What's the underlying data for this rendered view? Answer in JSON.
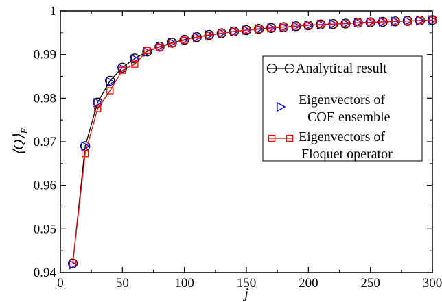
{
  "chart_data": {
    "type": "line",
    "xlabel": "j",
    "ylabel": "⟨Q⟩",
    "ylabel_sub": "E",
    "xlim": [
      0,
      300
    ],
    "ylim": [
      0.94,
      1.0
    ],
    "x_ticks": [
      0,
      50,
      100,
      150,
      200,
      250,
      300
    ],
    "y_ticks": [
      0.94,
      0.95,
      0.96,
      0.97,
      0.98,
      0.99,
      1.0
    ],
    "y_tick_labels": [
      "0.94",
      "0.95",
      "0.96",
      "0.97",
      "0.98",
      "0.99",
      "1"
    ],
    "x_tick_labels": [
      "0",
      "50",
      "100",
      "150",
      "200",
      "250",
      "300"
    ],
    "grid": false,
    "legend_position": "right-middle",
    "x": [
      10,
      20,
      30,
      40,
      50,
      60,
      70,
      80,
      90,
      100,
      110,
      120,
      130,
      140,
      150,
      160,
      170,
      180,
      190,
      200,
      210,
      220,
      230,
      240,
      250,
      260,
      270,
      280,
      290,
      300
    ],
    "series": [
      {
        "name": "Analytical result",
        "marker": "circle",
        "line": true,
        "color": "#000000",
        "values": [
          0.9421,
          0.969,
          0.979,
          0.984,
          0.987,
          0.9891,
          0.9907,
          0.9918,
          0.9927,
          0.9934,
          0.994,
          0.9945,
          0.9949,
          0.9953,
          0.9956,
          0.9959,
          0.9961,
          0.9963,
          0.9965,
          0.9967,
          0.9969,
          0.997,
          0.9971,
          0.9973,
          0.9974,
          0.9975,
          0.9976,
          0.9977,
          0.9978,
          0.9979
        ]
      },
      {
        "name": "Eigenvectors of COE ensemble",
        "legend_lines": [
          "Eigenvectors of",
          "COE ensemble"
        ],
        "marker": "triangle-right",
        "line": false,
        "color": "#0000ff",
        "values": [
          0.9418,
          0.969,
          0.979,
          0.9838,
          0.9868,
          0.989,
          0.9906,
          0.9918,
          0.9927,
          0.9934,
          0.994,
          0.9945,
          0.9949,
          0.9953,
          0.9956,
          0.9959,
          0.9961,
          0.9963,
          0.9965,
          0.9967,
          0.9969,
          0.997,
          0.9971,
          0.9973,
          0.9974,
          0.9975,
          0.9976,
          0.9977,
          0.9978,
          0.9979
        ]
      },
      {
        "name": "Eigenvectors of Floquet operator",
        "legend_lines": [
          "Eigenvectors of",
          "Floquet operator"
        ],
        "marker": "square",
        "line": true,
        "color": "#ff0000",
        "values": [
          0.9422,
          0.9673,
          0.9776,
          0.9817,
          0.9864,
          0.9878,
          0.9909,
          0.9917,
          0.9926,
          0.9933,
          0.994,
          0.9944,
          0.9949,
          0.9953,
          0.9956,
          0.9958,
          0.9961,
          0.9963,
          0.9965,
          0.9967,
          0.9969,
          0.997,
          0.9971,
          0.9973,
          0.9974,
          0.9975,
          0.9976,
          0.9977,
          0.9978,
          0.9979
        ]
      }
    ]
  }
}
